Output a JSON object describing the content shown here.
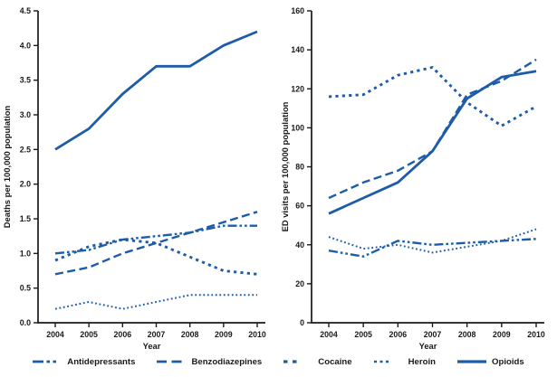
{
  "figure": {
    "background": "#ffffff",
    "accent_color": "#1c5ca8",
    "axis_color": "#1a1a1a",
    "text_color": "#1a1a1a"
  },
  "legend": {
    "items": [
      {
        "label": "Antidepressants",
        "style": "dashdot"
      },
      {
        "label": "Benzodiazepines",
        "style": "dashed"
      },
      {
        "label": "Cocaine",
        "style": "square-dot"
      },
      {
        "label": "Heroin",
        "style": "fine-dot"
      },
      {
        "label": "Opioids",
        "style": "solid"
      }
    ]
  },
  "chart_data": [
    {
      "type": "line",
      "title": "",
      "xlabel": "Year",
      "ylabel": "Deaths per 100,000 population",
      "x": [
        2004,
        2005,
        2006,
        2007,
        2008,
        2009,
        2010
      ],
      "ylim": [
        0,
        4.5
      ],
      "ytick_step": 0.5,
      "ytick_decimals": 1,
      "grid": false,
      "legend_position": "bottom",
      "series": [
        {
          "name": "Antidepressants",
          "style": "dashdot",
          "values": [
            1.0,
            1.05,
            1.2,
            1.25,
            1.3,
            1.4,
            1.4
          ]
        },
        {
          "name": "Benzodiazepines",
          "style": "dashed",
          "values": [
            0.7,
            0.8,
            1.0,
            1.15,
            1.3,
            1.45,
            1.6
          ]
        },
        {
          "name": "Cocaine",
          "style": "square-dot",
          "values": [
            0.9,
            1.1,
            1.2,
            1.15,
            0.95,
            0.75,
            0.7
          ]
        },
        {
          "name": "Heroin",
          "style": "fine-dot",
          "values": [
            0.2,
            0.3,
            0.2,
            0.3,
            0.4,
            0.4,
            0.4
          ]
        },
        {
          "name": "Opioids",
          "style": "solid",
          "values": [
            2.5,
            2.8,
            3.3,
            3.7,
            3.7,
            4.0,
            4.2
          ]
        }
      ]
    },
    {
      "type": "line",
      "title": "",
      "xlabel": "Year",
      "ylabel": "ED visits per 100,000 population",
      "x": [
        2004,
        2005,
        2006,
        2007,
        2008,
        2009,
        2010
      ],
      "ylim": [
        0,
        160
      ],
      "ytick_step": 20,
      "ytick_decimals": 0,
      "grid": false,
      "legend_position": "bottom",
      "series": [
        {
          "name": "Antidepressants",
          "style": "dashdot",
          "values": [
            37,
            34,
            42,
            40,
            41,
            42,
            43
          ]
        },
        {
          "name": "Benzodiazepines",
          "style": "dashed",
          "values": [
            64,
            72,
            78,
            88,
            117,
            124,
            135
          ]
        },
        {
          "name": "Cocaine",
          "style": "square-dot",
          "values": [
            116,
            117,
            127,
            131,
            113,
            101,
            111
          ]
        },
        {
          "name": "Heroin",
          "style": "fine-dot",
          "values": [
            44,
            38,
            40,
            36,
            39,
            42,
            48
          ]
        },
        {
          "name": "Opioids",
          "style": "solid",
          "values": [
            56,
            64,
            72,
            88,
            115,
            126,
            129
          ]
        }
      ]
    }
  ]
}
